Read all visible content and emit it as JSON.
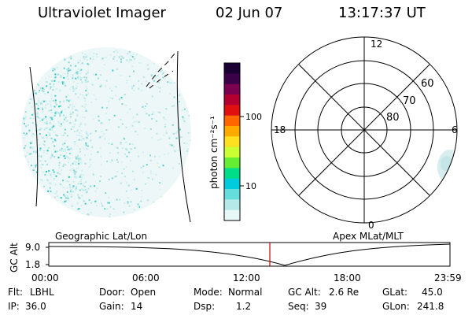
{
  "header": {
    "instrument": "Ultraviolet Imager",
    "date": "02 Jun 07",
    "time": "13:17:37 UT"
  },
  "colorbar": {
    "unit_label": "photon cm⁻²s⁻¹",
    "tick_labels": [
      "100",
      "10"
    ],
    "colors_top_to_bottom": [
      "#1a0033",
      "#3a0048",
      "#7a0050",
      "#b30030",
      "#e01010",
      "#ff6600",
      "#ffaa00",
      "#ffe020",
      "#ccff33",
      "#66ee33",
      "#00dd88",
      "#00ccdd",
      "#66dddd",
      "#b5e8e8",
      "#e8f8f8"
    ]
  },
  "polar_plot": {
    "mlt_labels": {
      "top": "12",
      "left": "18",
      "right": "6",
      "bottom": "0"
    },
    "lat_labels": [
      "60",
      "70",
      "80"
    ]
  },
  "timeline": {
    "left_label": "Geographic Lat/Lon",
    "right_label": "Apex MLat/MLT",
    "y_axis_label": "GC Alt",
    "y_ticks": [
      "9.0",
      "1.8"
    ],
    "x_ticks": [
      "00:00",
      "06:00",
      "12:00",
      "18:00",
      "23:59"
    ],
    "current_time": "13:17:37",
    "line_color": "#cc0000"
  },
  "status": {
    "row1": [
      {
        "label": "Flt:",
        "value": "LBHL"
      },
      {
        "label": "Door:",
        "value": "Open"
      },
      {
        "label": "Mode:",
        "value": "Normal"
      },
      {
        "label": "GC Alt:",
        "value": "2.6 Re"
      },
      {
        "label": "GLat:",
        "value": "45.0"
      }
    ],
    "row2": [
      {
        "label": "IP:",
        "value": "36.0"
      },
      {
        "label": "Gain:",
        "value": "14"
      },
      {
        "label": "Dsp:",
        "value": "1.2"
      },
      {
        "label": "Seq:",
        "value": "39"
      },
      {
        "label": "GLon:",
        "value": "241.8"
      }
    ]
  }
}
